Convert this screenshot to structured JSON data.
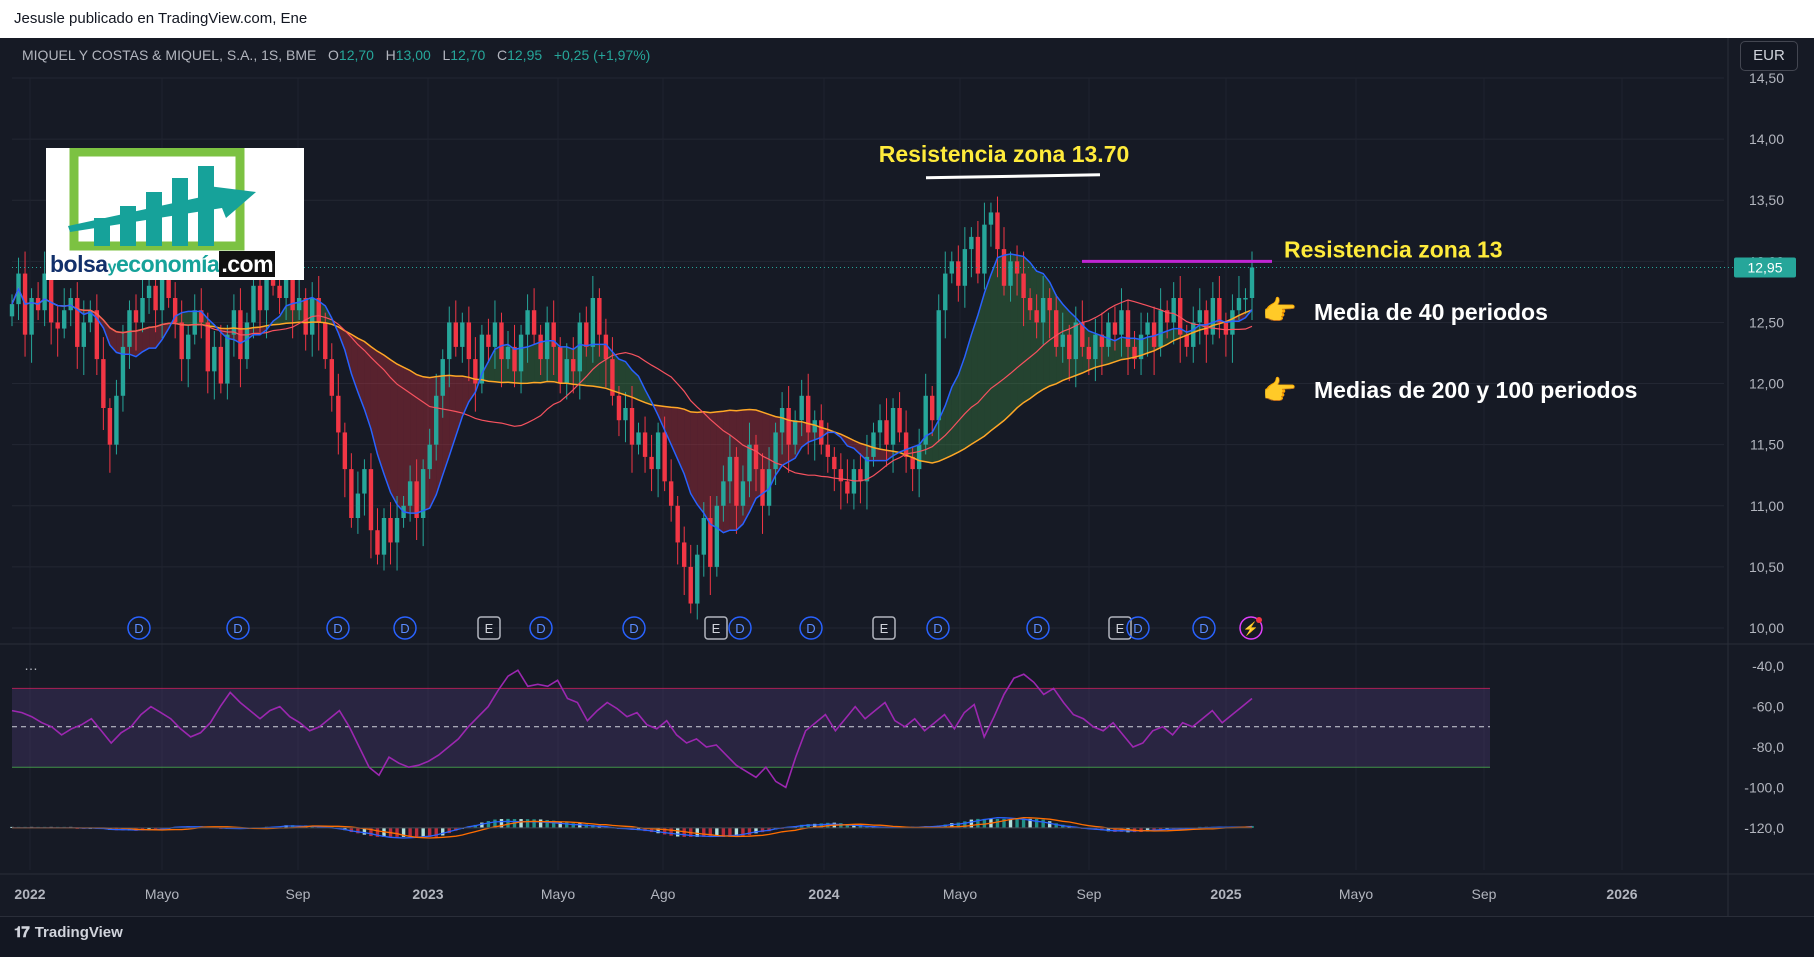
{
  "header": {
    "published": "Jesusle publicado en TradingView.com, Ene"
  },
  "symbol": {
    "name": "MIQUEL Y COSTAS & MIQUEL, S.A., 1S, BME",
    "o_label": "O",
    "o_value": "12,70",
    "h_label": "H",
    "h_value": "13,00",
    "l_label": "L",
    "l_value": "12,70",
    "c_label": "C",
    "c_value": "12,95",
    "change": "+0,25 (+1,97%)"
  },
  "currency_button": "EUR",
  "logo": {
    "part1": "bolsa",
    "part2": "y",
    "part3": "economía",
    "part4": ".com"
  },
  "indicator_menu": "…",
  "footer": {
    "brand": "TradingView"
  },
  "colors": {
    "bull": "#26a69a",
    "bear": "#f23645",
    "ma40": "#2962ff",
    "ma100": "#f7525f",
    "ma200": "#ffa726",
    "rsi": "#9c27b0",
    "annotation_yellow": "#ffeb3b",
    "resistance_line": "#c026d3",
    "last_price_badge": "#26a69a"
  },
  "chart_data": [
    {
      "type": "candlestick",
      "price_axis": {
        "ticks": [
          "14,50",
          "14,00",
          "13,50",
          "13,00",
          "12,50",
          "12,00",
          "11,50",
          "11,00",
          "10,50",
          "10,00"
        ],
        "range": [
          10.0,
          14.5
        ]
      },
      "time_axis": {
        "labels": [
          "2022",
          "Mayo",
          "Sep",
          "2023",
          "Mayo",
          "Ago",
          "2024",
          "Mayo",
          "Sep",
          "2025",
          "Mayo",
          "Sep",
          "2026"
        ]
      },
      "last_price": 12.95,
      "last_price_label": "12,95",
      "weekly_closes": [
        12.65,
        12.9,
        12.4,
        12.7,
        12.6,
        12.9,
        12.5,
        12.45,
        12.6,
        12.7,
        12.3,
        12.5,
        12.6,
        12.2,
        11.8,
        11.5,
        11.9,
        12.3,
        12.6,
        12.5,
        12.7,
        12.8,
        12.6,
        12.9,
        12.7,
        12.5,
        12.2,
        12.4,
        12.6,
        12.5,
        12.1,
        12.3,
        12.0,
        12.4,
        12.6,
        12.2,
        12.5,
        12.8,
        12.6,
        12.9,
        12.8,
        12.7,
        12.85,
        12.6,
        12.7,
        12.4,
        12.7,
        12.5,
        12.2,
        11.9,
        11.6,
        11.3,
        10.9,
        11.1,
        11.3,
        10.8,
        10.6,
        10.9,
        10.7,
        10.9,
        11.0,
        11.2,
        10.9,
        11.3,
        11.5,
        11.9,
        12.2,
        12.5,
        12.3,
        12.5,
        12.2,
        12.0,
        12.4,
        12.3,
        12.5,
        12.2,
        12.3,
        12.1,
        12.4,
        12.6,
        12.4,
        12.2,
        12.5,
        12.3,
        12.0,
        12.2,
        12.1,
        12.5,
        12.3,
        12.7,
        12.4,
        12.2,
        11.9,
        11.7,
        11.8,
        11.5,
        11.6,
        11.4,
        11.3,
        11.6,
        11.2,
        11.0,
        10.7,
        10.5,
        10.2,
        10.6,
        10.9,
        10.5,
        11.0,
        11.2,
        11.4,
        11.0,
        11.2,
        11.5,
        11.3,
        11.0,
        11.3,
        11.6,
        11.8,
        11.5,
        11.7,
        11.9,
        11.6,
        11.7,
        11.5,
        11.4,
        11.3,
        11.2,
        11.1,
        11.3,
        11.2,
        11.4,
        11.6,
        11.7,
        11.5,
        11.8,
        11.6,
        11.4,
        11.3,
        11.5,
        11.9,
        11.7,
        12.6,
        12.9,
        13.0,
        12.8,
        13.1,
        13.2,
        12.9,
        13.3,
        13.4,
        13.1,
        12.8,
        13.0,
        12.9,
        12.7,
        12.6,
        12.5,
        12.7,
        12.6,
        12.3,
        12.4,
        12.2,
        12.5,
        12.3,
        12.2,
        12.4,
        12.3,
        12.5,
        12.4,
        12.6,
        12.3,
        12.2,
        12.4,
        12.5,
        12.3,
        12.6,
        12.5,
        12.7,
        12.4,
        12.3,
        12.5,
        12.6,
        12.4,
        12.7,
        12.5,
        12.4,
        12.6,
        12.7,
        12.7,
        12.95
      ],
      "moving_averages": [
        {
          "name": "Media de 40 periodos",
          "periods": 40
        },
        {
          "name": "Medias de 200 y 100 periodos",
          "periods": [
            200,
            100
          ]
        }
      ],
      "event_markers": [
        {
          "type": "D",
          "label": "D"
        },
        {
          "type": "D",
          "label": "D"
        },
        {
          "type": "D",
          "label": "D"
        },
        {
          "type": "D",
          "label": "D"
        },
        {
          "type": "E",
          "label": "E"
        },
        {
          "type": "D",
          "label": "D"
        },
        {
          "type": "D",
          "label": "D"
        },
        {
          "type": "E",
          "label": "E"
        },
        {
          "type": "D",
          "label": "D"
        },
        {
          "type": "D",
          "label": "D"
        },
        {
          "type": "E",
          "label": "E"
        },
        {
          "type": "D",
          "label": "D"
        },
        {
          "type": "D",
          "label": "D"
        },
        {
          "type": "E",
          "label": "E"
        },
        {
          "type": "D",
          "label": "D"
        },
        {
          "type": "D",
          "label": "D"
        },
        {
          "type": "flash",
          "label": "⚡"
        }
      ],
      "annotations": [
        {
          "text": "Resistencia zona 13.70",
          "price": 13.7
        },
        {
          "text": "Resistencia zona 13",
          "price": 13.0
        },
        {
          "text": "Media de 40 periodos",
          "icon": "pointing-hand-icon"
        },
        {
          "text": "Medias de 200 y 100 periodos",
          "icon": "pointing-hand-icon"
        }
      ]
    },
    {
      "type": "line",
      "name": "",
      "y_axis": {
        "ticks": [
          "-40,0",
          "-60,0",
          "-80,0",
          "-100,0",
          "-120,0"
        ]
      },
      "bands": {
        "upper": -51,
        "middle": -70,
        "lower": -90
      },
      "values": [
        -62,
        -63,
        -65,
        -68,
        -70,
        -74,
        -71,
        -69,
        -66,
        -72,
        -78,
        -73,
        -70,
        -64,
        -60,
        -63,
        -66,
        -71,
        -75,
        -73,
        -68,
        -60,
        -53,
        -58,
        -62,
        -66,
        -62,
        -60,
        -65,
        -68,
        -72,
        -70,
        -66,
        -62,
        -70,
        -80,
        -90,
        -94,
        -85,
        -88,
        -90,
        -89,
        -87,
        -84,
        -80,
        -76,
        -70,
        -65,
        -60,
        -52,
        -45,
        -42,
        -50,
        -49,
        -50,
        -47,
        -56,
        -58,
        -67,
        -62,
        -58,
        -61,
        -65,
        -63,
        -69,
        -71,
        -67,
        -74,
        -78,
        -76,
        -80,
        -79,
        -84,
        -89,
        -92,
        -95,
        -90,
        -97,
        -100,
        -85,
        -72,
        -68,
        -64,
        -72,
        -66,
        -60,
        -66,
        -62,
        -58,
        -67,
        -70,
        -66,
        -72,
        -68,
        -64,
        -71,
        -63,
        -59,
        -75,
        -65,
        -54,
        -46,
        -44,
        -48,
        -54,
        -51,
        -58,
        -64,
        -66,
        -70,
        -72,
        -68,
        -74,
        -80,
        -78,
        -72,
        -70,
        -74,
        -68,
        -70,
        -66,
        -62,
        -68,
        -64,
        -60,
        -56
      ],
      "dashed_line": -70
    },
    {
      "type": "histogram",
      "name": "",
      "y_axis": {
        "ticks": [
          "-120,0"
        ]
      }
    }
  ]
}
